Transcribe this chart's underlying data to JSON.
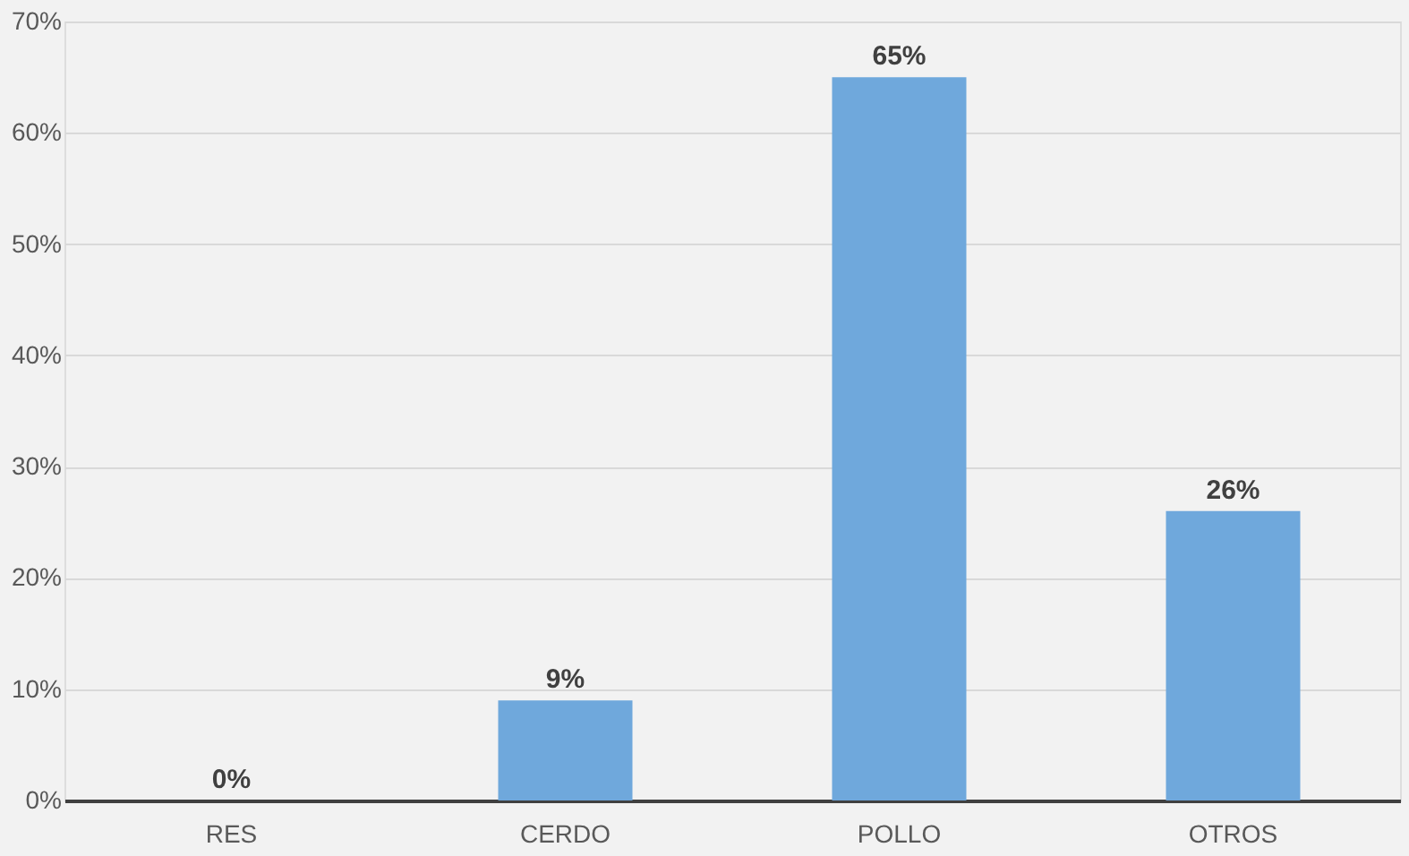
{
  "chart_data": {
    "type": "bar",
    "categories": [
      "RES",
      "CERDO",
      "POLLO",
      "OTROS"
    ],
    "values": [
      0,
      9,
      65,
      26
    ],
    "color": "#6fa8dc",
    "value_labels": [
      "0%",
      "9%",
      "65%",
      "26%"
    ],
    "ylim": [
      0,
      70
    ],
    "yticks": [
      {
        "value": 0,
        "label": "0%"
      },
      {
        "value": 10,
        "label": "10%"
      },
      {
        "value": 20,
        "label": "20%"
      },
      {
        "value": 30,
        "label": "30%"
      },
      {
        "value": 40,
        "label": "40%"
      },
      {
        "value": 50,
        "label": "50%"
      },
      {
        "value": 60,
        "label": "60%"
      },
      {
        "value": 70,
        "label": "70%"
      }
    ],
    "grid": "y"
  }
}
